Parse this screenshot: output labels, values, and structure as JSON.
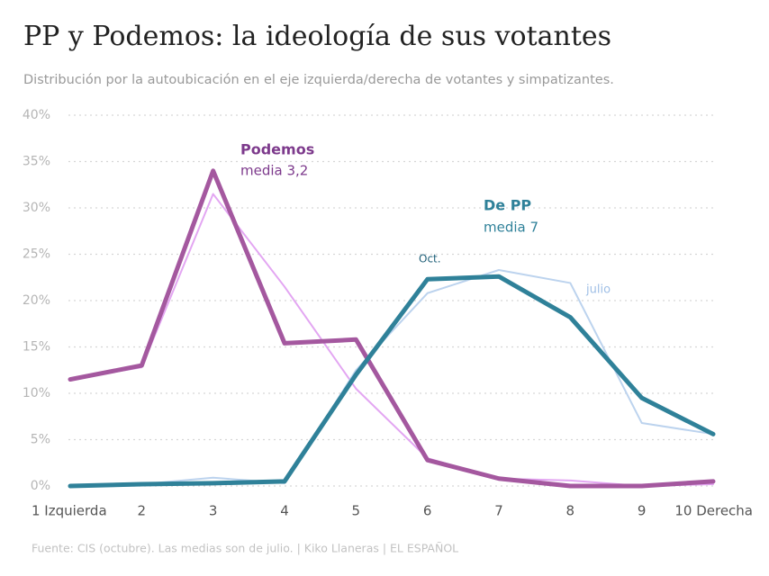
{
  "chart_data": {
    "type": "line",
    "title": "PP y Podemos: la ideología de sus votantes",
    "subtitle": "Distribución por la autoubicación en el eje izquierda/derecha de votantes y simpatizantes.",
    "source": "Fuente: CIS (octubre). Las medias son de julio.  |  Kiko Llaneras  |  EL ESPAÑOL",
    "categories": [
      "1 Izquierda",
      "2",
      "3",
      "4",
      "5",
      "6",
      "7",
      "8",
      "9",
      "10 Derecha"
    ],
    "series": [
      {
        "color": "#e3a6f2",
        "width": 2,
        "values": [
          11.5,
          12.8,
          31.5,
          21.5,
          10.5,
          3,
          0.8,
          0.6,
          0,
          0.2
        ]
      },
      {
        "color": "#bcd3ee",
        "width": 2,
        "values": [
          0,
          0.2,
          0.9,
          0.3,
          12.5,
          20.8,
          23.3,
          21.9,
          6.8,
          5.6
        ]
      },
      {
        "color": "#a4589f",
        "width": 5,
        "values": [
          11.5,
          13,
          34,
          15.4,
          15.8,
          2.8,
          0.8,
          0,
          0,
          0.5
        ]
      },
      {
        "color": "#2f8199",
        "width": 5,
        "values": [
          0,
          0.2,
          0.3,
          0.5,
          12,
          22.3,
          22.6,
          18.2,
          9.5,
          5.6
        ]
      }
    ],
    "annotations": [
      {
        "text": "Podemos",
        "color": "#7d3a8c",
        "bold": true
      },
      {
        "text": "media 3,2",
        "color": "#7d3a8c",
        "bold": false
      },
      {
        "text": "De PP",
        "color": "#2f8199",
        "bold": true
      },
      {
        "text": "media 7",
        "color": "#2f8199",
        "bold": false
      },
      {
        "text": "Oct.",
        "color": "#1f5f78",
        "bold": false
      },
      {
        "text": "julio",
        "color": "#9fbfe6",
        "bold": false
      }
    ],
    "ylim": [
      0,
      40
    ],
    "yticks": [
      {
        "value": 0,
        "label": "0%"
      },
      {
        "value": 5,
        "label": "5%"
      },
      {
        "value": 10,
        "label": "10%"
      },
      {
        "value": 15,
        "label": "15%"
      },
      {
        "value": 20,
        "label": "20%"
      },
      {
        "value": 25,
        "label": "25%"
      },
      {
        "value": 30,
        "label": "30%"
      },
      {
        "value": 35,
        "label": "35%"
      },
      {
        "value": 40,
        "label": "40%"
      }
    ],
    "grid": true
  }
}
